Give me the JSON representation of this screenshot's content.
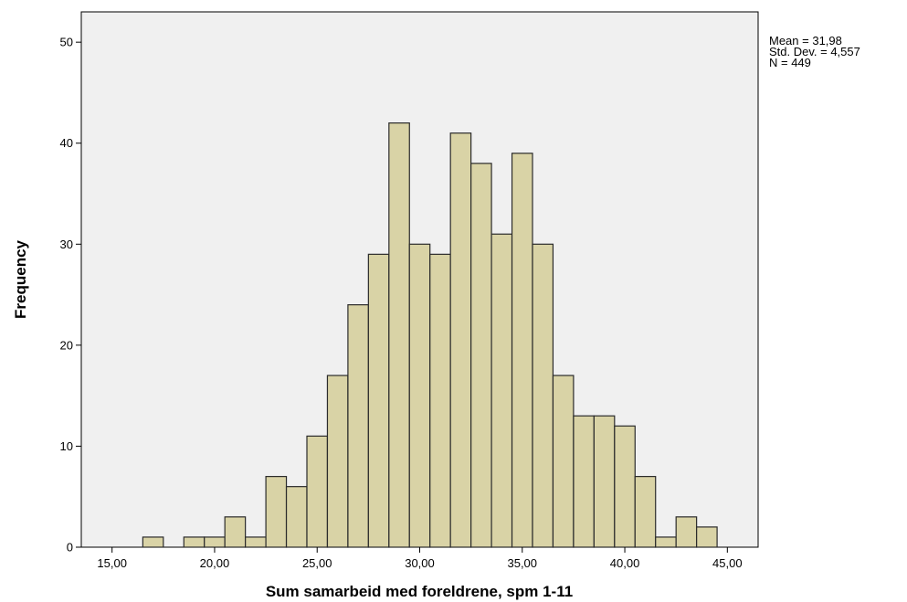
{
  "chart_data": {
    "type": "bar",
    "subtype": "histogram",
    "xlabel": "Sum samarbeid med foreldrene, spm 1-11",
    "ylabel": "Frequency",
    "xlim": [
      13.5,
      46.5
    ],
    "ylim": [
      0,
      53
    ],
    "x_ticks": [
      {
        "value": 15,
        "label": "15,00"
      },
      {
        "value": 20,
        "label": "20,00"
      },
      {
        "value": 25,
        "label": "25,00"
      },
      {
        "value": 30,
        "label": "30,00"
      },
      {
        "value": 35,
        "label": "35,00"
      },
      {
        "value": 40,
        "label": "40,00"
      },
      {
        "value": 45,
        "label": "45,00"
      }
    ],
    "y_ticks": [
      0,
      10,
      20,
      30,
      40,
      50
    ],
    "bin_width": 1,
    "bins": [
      {
        "x": 17,
        "count": 1
      },
      {
        "x": 19,
        "count": 1
      },
      {
        "x": 20,
        "count": 1
      },
      {
        "x": 21,
        "count": 3
      },
      {
        "x": 22,
        "count": 1
      },
      {
        "x": 23,
        "count": 7
      },
      {
        "x": 24,
        "count": 6
      },
      {
        "x": 25,
        "count": 11
      },
      {
        "x": 26,
        "count": 17
      },
      {
        "x": 27,
        "count": 24
      },
      {
        "x": 28,
        "count": 29
      },
      {
        "x": 29,
        "count": 42
      },
      {
        "x": 30,
        "count": 30
      },
      {
        "x": 31,
        "count": 29
      },
      {
        "x": 32,
        "count": 41
      },
      {
        "x": 33,
        "count": 38
      },
      {
        "x": 34,
        "count": 31
      },
      {
        "x": 35,
        "count": 39
      },
      {
        "x": 36,
        "count": 30
      },
      {
        "x": 37,
        "count": 17
      },
      {
        "x": 38,
        "count": 13
      },
      {
        "x": 39,
        "count": 13
      },
      {
        "x": 40,
        "count": 12
      },
      {
        "x": 41,
        "count": 7
      },
      {
        "x": 42,
        "count": 1
      },
      {
        "x": 43,
        "count": 3
      },
      {
        "x": 44,
        "count": 2
      }
    ],
    "stats": {
      "mean": "Mean = 31,98",
      "std_dev": "Std. Dev. = 4,557",
      "n": "N = 449"
    },
    "grid": false,
    "legend": "none",
    "colors": {
      "bar_fill": "#d9d3a6",
      "bar_stroke": "#2b2b2b",
      "plot_background": "#f0f0f0",
      "axis": "#000000"
    }
  }
}
